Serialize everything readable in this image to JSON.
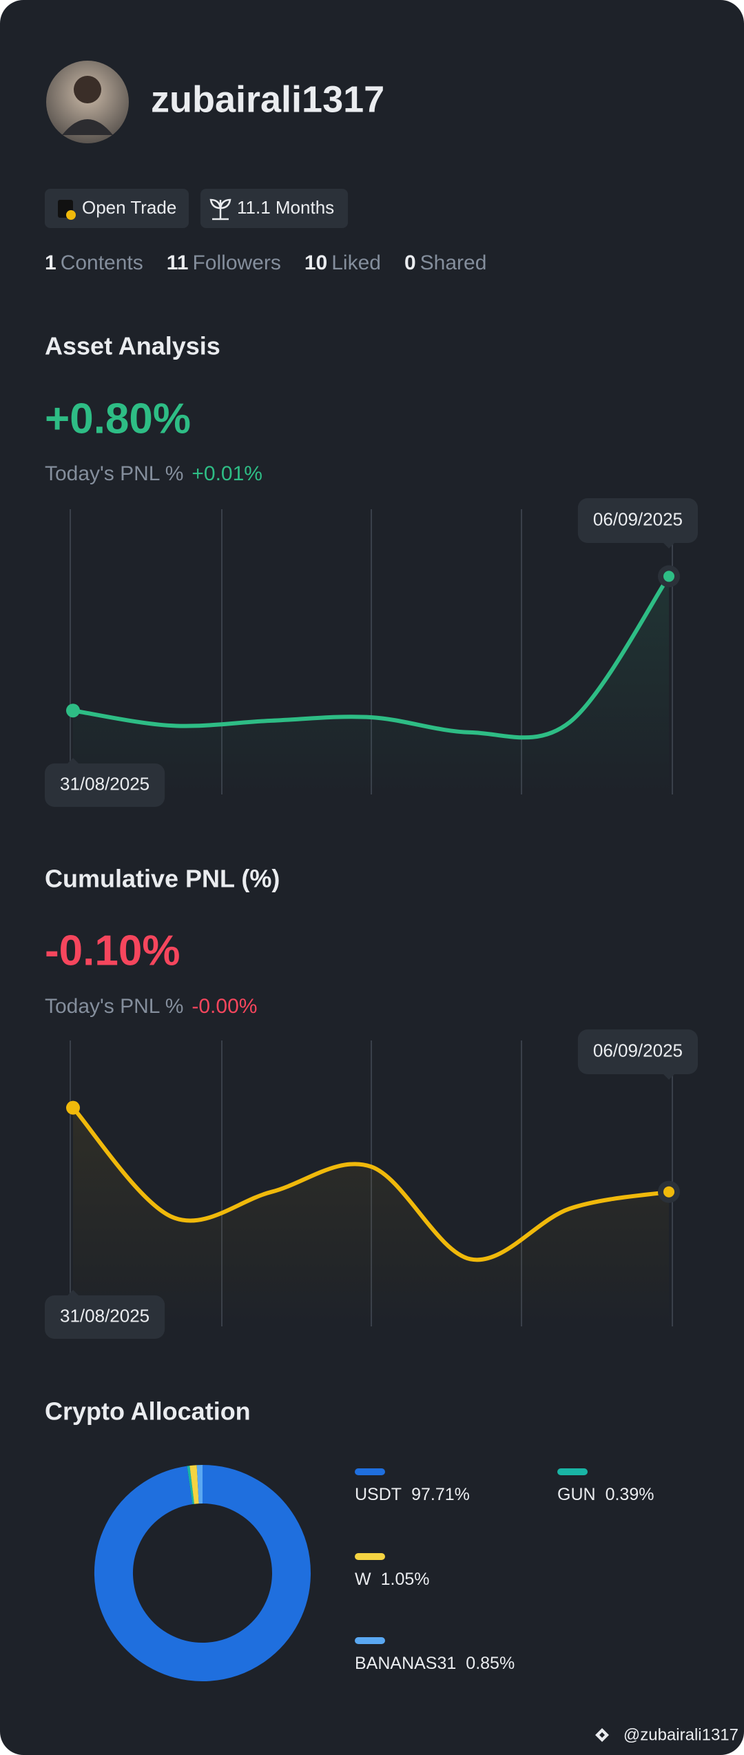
{
  "profile": {
    "username": "zubairali1317",
    "badges": [
      "Open Trade",
      "11.1 Months"
    ],
    "stats": [
      {
        "count": 1,
        "label": "Contents"
      },
      {
        "count": 11,
        "label": "Followers"
      },
      {
        "count": 10,
        "label": "Liked"
      },
      {
        "count": 0,
        "label": "Shared"
      }
    ]
  },
  "asset_analysis": {
    "title": "Asset Analysis",
    "headline": "+0.80%",
    "today_label": "Today's PNL %",
    "today_value": "+0.01%",
    "chart": {
      "type": "line",
      "categories": [
        "31/08/2025",
        null,
        null,
        null,
        null,
        null,
        "06/09/2025"
      ],
      "values": [
        0,
        -0.09,
        -0.06,
        -0.04,
        -0.13,
        -0.07,
        0.8
      ],
      "color": "#2ebd85",
      "ylim": [
        -0.5,
        1.2
      ]
    }
  },
  "cumulative_pnl": {
    "title": "Cumulative PNL (%)",
    "headline": "-0.10%",
    "today_label": "Today's PNL %",
    "today_value": "-0.00%",
    "chart": {
      "type": "line",
      "categories": [
        "31/08/2025",
        null,
        null,
        null,
        null,
        null,
        "06/09/2025"
      ],
      "values": [
        0,
        -0.13,
        -0.1,
        -0.07,
        -0.18,
        -0.12,
        -0.1
      ],
      "color": "#f0b90b",
      "ylim": [
        -0.26,
        0.08
      ]
    }
  },
  "crypto_allocation": {
    "title": "Crypto Allocation",
    "chart": {
      "type": "pie",
      "categories": [
        "USDT",
        "GUN",
        "W",
        "BANANAS31"
      ],
      "values": [
        97.71,
        0.39,
        1.05,
        0.85
      ],
      "value_labels": [
        "97.71%",
        "0.39%",
        "1.05%",
        "0.85%"
      ],
      "colors": [
        "#1f6fde",
        "#19b5a5",
        "#f5d442",
        "#5aa8f2"
      ]
    }
  },
  "footer": "@zubairali1317"
}
